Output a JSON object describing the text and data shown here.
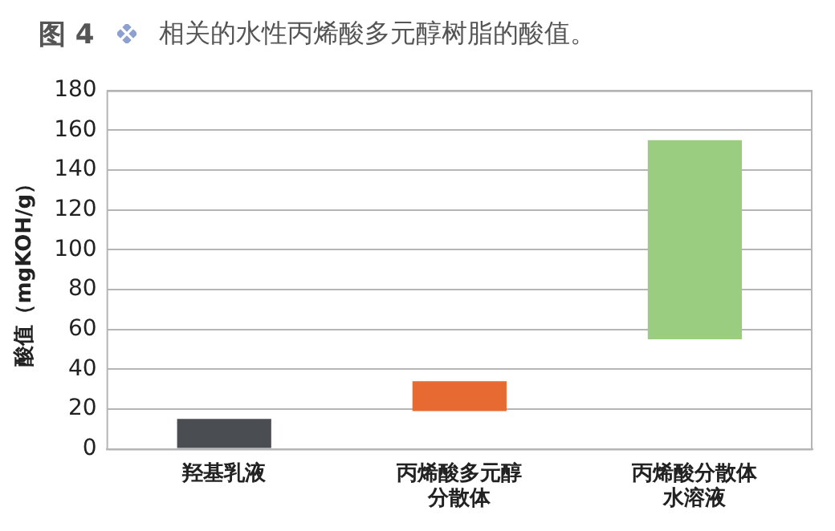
{
  "chart_data": {
    "type": "bar",
    "title": "图 4",
    "subtitle": "相关的水性丙烯酸多元醇树脂的酸值。",
    "ylabel": "酸值（mgKOH/g）",
    "categories": [
      "羟基乳液",
      "丙烯酸多元醇分散体",
      "丙烯酸分散体水溶液"
    ],
    "values": [
      15,
      15,
      100
    ],
    "base": [
      0,
      19,
      55
    ],
    "colors": [
      "#4a4d52",
      "#e66a32",
      "#9acd80"
    ],
    "ylim": [
      0,
      180
    ],
    "yticks": [
      0,
      20,
      40,
      60,
      80,
      100,
      120,
      140,
      160,
      180
    ],
    "grid": "y",
    "legend": false
  }
}
